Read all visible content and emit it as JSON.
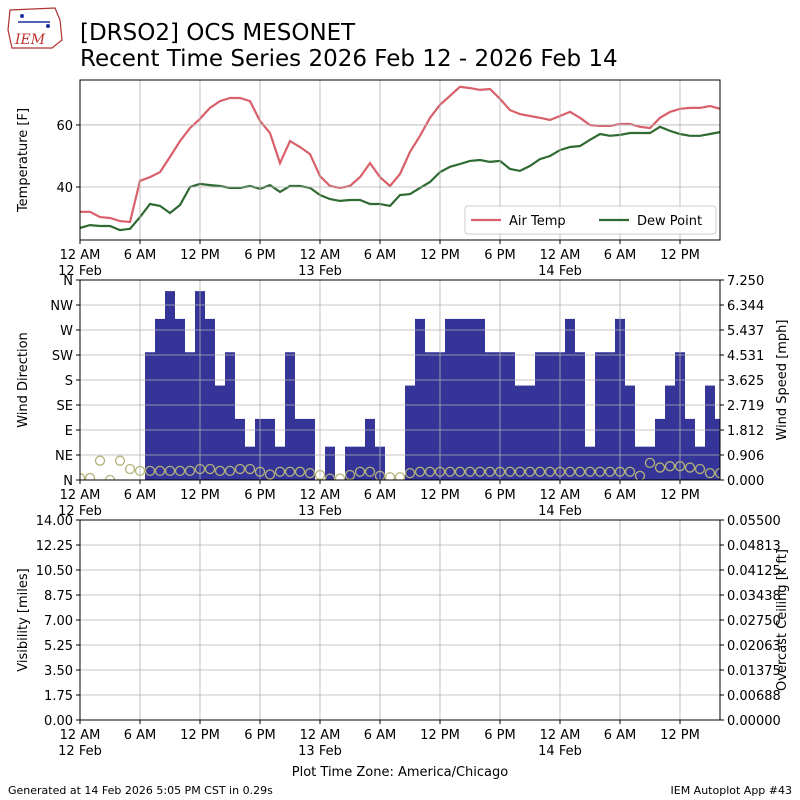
{
  "header": {
    "logo_text": "IEM",
    "title_line1": "[DRSO2] OCS MESONET",
    "title_line2": "Recent Time Series 2026 Feb 12 - 2026 Feb 14"
  },
  "time_axis": {
    "xlim": [
      0,
      64
    ],
    "xticks": [
      {
        "value": 0,
        "label": "12 AM"
      },
      {
        "value": 6,
        "label": "6 AM"
      },
      {
        "value": 12,
        "label": "12 PM"
      },
      {
        "value": 18,
        "label": "6 PM"
      },
      {
        "value": 24,
        "label": "12 AM"
      },
      {
        "value": 30,
        "label": "6 AM"
      },
      {
        "value": 36,
        "label": "12 PM"
      },
      {
        "value": 42,
        "label": "6 PM"
      },
      {
        "value": 48,
        "label": "12 AM"
      },
      {
        "value": 54,
        "label": "6 AM"
      },
      {
        "value": 60,
        "label": "12 PM"
      }
    ],
    "date_labels": [
      {
        "value": 0,
        "label": "12 Feb"
      },
      {
        "value": 24,
        "label": "13 Feb"
      },
      {
        "value": 48,
        "label": "14 Feb"
      }
    ],
    "label": "Plot Time Zone: America/Chicago"
  },
  "chart_data": [
    {
      "type": "line",
      "ylabel": "Temperature [F]",
      "ylim": [
        22.9,
        74.5
      ],
      "yticks": [
        40,
        60
      ],
      "grid": true,
      "legend": "lower right",
      "x": [
        0,
        1,
        2,
        3,
        4,
        5,
        6,
        7,
        8,
        9,
        10,
        11,
        12,
        13,
        14,
        15,
        16,
        17,
        18,
        19,
        20,
        21,
        22,
        23,
        24,
        25,
        26,
        27,
        28,
        29,
        30,
        31,
        32,
        33,
        34,
        35,
        36,
        37,
        38,
        39,
        40,
        41,
        42,
        43,
        44,
        45,
        46,
        47,
        48,
        49,
        50,
        51,
        52,
        53,
        54,
        55,
        56,
        57,
        58,
        59,
        60,
        61,
        62,
        63,
        64
      ],
      "series": [
        {
          "name": "Air Temp",
          "color": "#d9606a",
          "values": [
            32,
            32,
            30.3,
            30,
            29,
            28.7,
            42,
            43.2,
            44.8,
            49.7,
            54.8,
            59,
            62,
            65.5,
            67.7,
            68.7,
            68.7,
            67.7,
            61.3,
            57.4,
            47.7,
            54.8,
            52.9,
            50.6,
            43.5,
            40.3,
            39.7,
            40.3,
            43.2,
            47.7,
            43.2,
            40.3,
            44.2,
            51.3,
            56.5,
            62.3,
            66.5,
            69.4,
            72.3,
            71.9,
            71.3,
            71.6,
            68.4,
            64.8,
            63.5,
            62.9,
            62.3,
            61.6,
            62.9,
            64.2,
            62.3,
            60,
            59.7,
            59.7,
            60.3,
            60.3,
            59.4,
            59,
            62.3,
            64.2,
            65.2,
            65.5,
            65.5,
            66.1,
            65.2
          ]
        },
        {
          "name": "Dew Point",
          "color": "#2f6a31",
          "values": [
            26.8,
            27.7,
            27.4,
            27.4,
            26.1,
            26.5,
            30.3,
            34.5,
            33.9,
            31.6,
            34.2,
            40,
            41,
            40.6,
            40.3,
            39.7,
            39.7,
            40.3,
            39.4,
            40.6,
            38.4,
            40.3,
            40.3,
            39.7,
            37.4,
            36.1,
            35.5,
            35.8,
            35.8,
            34.5,
            34.5,
            33.9,
            37.4,
            37.7,
            39.7,
            41.6,
            44.8,
            46.5,
            47.4,
            48.4,
            48.7,
            48.1,
            48.4,
            45.8,
            45.2,
            46.8,
            49,
            50,
            51.9,
            52.9,
            53.2,
            55.2,
            57.1,
            56.5,
            56.8,
            57.4,
            57.4,
            57.4,
            59.4,
            58.1,
            57.1,
            56.5,
            56.5,
            57.1,
            57.7
          ]
        }
      ]
    },
    {
      "type": "bar",
      "ylabel": "Wind Direction",
      "y2label": "Wind Speed [mph]",
      "grid": true,
      "ylim": [
        0,
        360
      ],
      "yticks": [
        {
          "value": 0,
          "label": "N"
        },
        {
          "value": 45,
          "label": "NE"
        },
        {
          "value": 90,
          "label": "E"
        },
        {
          "value": 135,
          "label": "SE"
        },
        {
          "value": 180,
          "label": "S"
        },
        {
          "value": 225,
          "label": "SW"
        },
        {
          "value": 270,
          "label": "W"
        },
        {
          "value": 315,
          "label": "NW"
        },
        {
          "value": 360,
          "label": "N"
        }
      ],
      "y2lim": [
        0,
        7.25
      ],
      "y2ticks": [
        {
          "value": 0,
          "label": "0.000"
        },
        {
          "value": 0.90625,
          "label": "0.906"
        },
        {
          "value": 1.8125,
          "label": "1.812"
        },
        {
          "value": 2.71875,
          "label": "2.719"
        },
        {
          "value": 3.625,
          "label": "3.625"
        },
        {
          "value": 4.53125,
          "label": "4.531"
        },
        {
          "value": 5.4375,
          "label": "5.437"
        },
        {
          "value": 6.34375,
          "label": "6.344"
        },
        {
          "value": 7.25,
          "label": "7.250"
        }
      ],
      "x": [
        0,
        1,
        2,
        3,
        4,
        5,
        6,
        7,
        8,
        9,
        10,
        11,
        12,
        13,
        14,
        15,
        16,
        17,
        18,
        19,
        20,
        21,
        22,
        23,
        24,
        25,
        26,
        27,
        28,
        29,
        30,
        31,
        32,
        33,
        34,
        35,
        36,
        37,
        38,
        39,
        40,
        41,
        42,
        43,
        44,
        45,
        46,
        47,
        48,
        49,
        50,
        51,
        52,
        53,
        54,
        55,
        56,
        57,
        58,
        59,
        60,
        61,
        62,
        63,
        64
      ],
      "series": [
        {
          "color": "#353599",
          "values": [
            0,
            0,
            0,
            0,
            0,
            0,
            0,
            230,
            290,
            340,
            290,
            230,
            340,
            290,
            170,
            230,
            110,
            60,
            110,
            110,
            60,
            230,
            110,
            110,
            0,
            60,
            0,
            60,
            60,
            110,
            60,
            0,
            0,
            170,
            290,
            230,
            230,
            290,
            290,
            290,
            290,
            230,
            230,
            230,
            170,
            170,
            230,
            230,
            230,
            290,
            230,
            60,
            230,
            230,
            290,
            170,
            60,
            60,
            110,
            170,
            230,
            110,
            60,
            170,
            110
          ]
        },
        {
          "color": "#b3b37a",
          "axis": "y2",
          "marker": "open-circle",
          "values": [
            0.07,
            0.07,
            0.7,
            0,
            0.7,
            0.4,
            0.33,
            0.33,
            0.33,
            0.33,
            0.33,
            0.33,
            0.4,
            0.4,
            0.33,
            0.33,
            0.4,
            0.4,
            0.3,
            0.2,
            0.3,
            0.3,
            0.3,
            0.25,
            0.18,
            0.05,
            0.05,
            0.18,
            0.3,
            0.3,
            0.15,
            0.1,
            0.1,
            0.25,
            0.3,
            0.3,
            0.3,
            0.3,
            0.3,
            0.3,
            0.3,
            0.3,
            0.3,
            0.3,
            0.3,
            0.3,
            0.3,
            0.3,
            0.3,
            0.3,
            0.3,
            0.3,
            0.3,
            0.3,
            0.3,
            0.3,
            0.15,
            0.62,
            0.45,
            0.5,
            0.5,
            0.45,
            0.4,
            0.25,
            0.25
          ]
        }
      ]
    },
    {
      "type": "line",
      "ylabel": "Visibility [miles]",
      "y2label": "Overcast Ceiling [k ft]",
      "y2label_color": "#008000",
      "grid": true,
      "ylim": [
        0,
        14
      ],
      "yticks": [
        {
          "value": 0,
          "label": "0.00"
        },
        {
          "value": 1.75,
          "label": "1.75"
        },
        {
          "value": 3.5,
          "label": "3.50"
        },
        {
          "value": 5.25,
          "label": "5.25"
        },
        {
          "value": 7,
          "label": "7.00"
        },
        {
          "value": 8.75,
          "label": "8.75"
        },
        {
          "value": 10.5,
          "label": "10.50"
        },
        {
          "value": 12.25,
          "label": "12.25"
        },
        {
          "value": 14,
          "label": "14.00"
        }
      ],
      "y2lim": [
        0,
        0.055
      ],
      "y2ticks": [
        {
          "value": 0,
          "label": "0.00000"
        },
        {
          "value": 0.006875,
          "label": "0.00688"
        },
        {
          "value": 0.01375,
          "label": "0.01375"
        },
        {
          "value": 0.020625,
          "label": "0.02063"
        },
        {
          "value": 0.0275,
          "label": "0.02750"
        },
        {
          "value": 0.034375,
          "label": "0.03438"
        },
        {
          "value": 0.04125,
          "label": "0.04125"
        },
        {
          "value": 0.048125,
          "label": "0.04813"
        },
        {
          "value": 0.055,
          "label": "0.05500"
        }
      ],
      "series": []
    }
  ],
  "footer": {
    "left": "Generated at 14 Feb 2026 5:05 PM CST in 0.29s",
    "right": "IEM Autoplot App #43"
  }
}
